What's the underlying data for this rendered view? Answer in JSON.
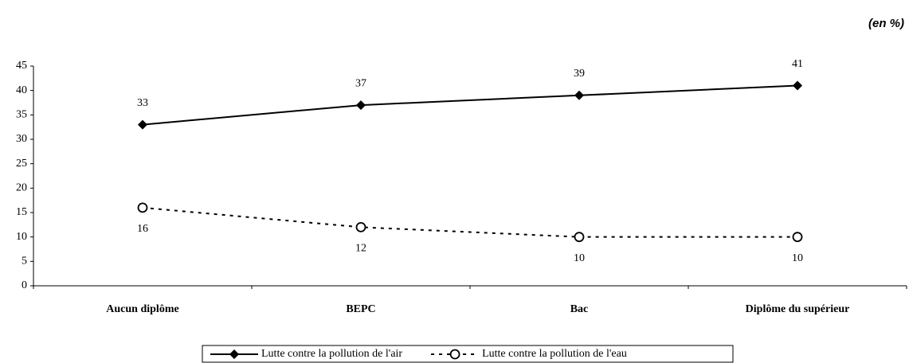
{
  "chart_data": {
    "type": "line",
    "annotation": "(en %)",
    "categories": [
      "Aucun diplôme",
      "BEPC",
      "Bac",
      "Diplôme du supérieur"
    ],
    "series": [
      {
        "name": "Lutte contre la pollution de l'air",
        "color": "#000000",
        "values": [
          33,
          37,
          39,
          41
        ],
        "style": "solid",
        "marker": "diamond",
        "label_position": "above"
      },
      {
        "name": "Lutte contre la pollution de l'eau",
        "color": "#000000",
        "values": [
          16,
          12,
          10,
          10
        ],
        "style": "dashed",
        "marker": "circle",
        "label_position": "below"
      }
    ],
    "ylim": [
      0,
      45
    ],
    "yticks": [
      0,
      5,
      10,
      15,
      20,
      25,
      30,
      35,
      40,
      45
    ],
    "grid": false,
    "legend": "bottom"
  }
}
